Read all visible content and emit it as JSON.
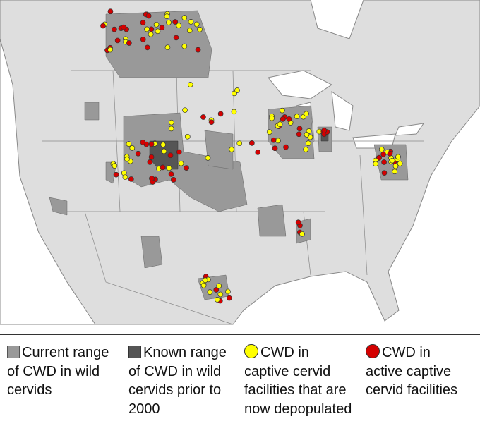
{
  "legend": {
    "items": [
      {
        "label": "Current range of CWD in wild cervids"
      },
      {
        "label": "Known range of CWD in wild cervids prior to 2000"
      },
      {
        "label": "CWD in captive cervid facilities that are now depopulated"
      },
      {
        "label": "CWD in active captive cervid facilities"
      }
    ]
  }
}
